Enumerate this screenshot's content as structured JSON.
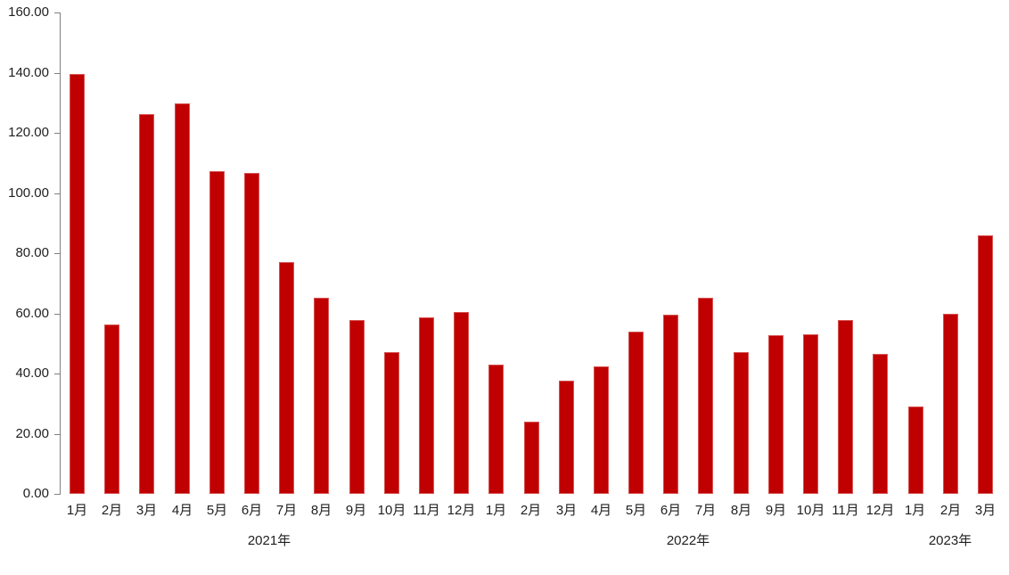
{
  "chart_data": {
    "type": "bar",
    "title": "",
    "xlabel": "",
    "ylabel": "",
    "bar_color": "#c00000",
    "axis_color": "#808080",
    "text_color": "#1f1f1f",
    "ylim": [
      0,
      160
    ],
    "y_ticks": [
      "0.00",
      "20.00",
      "40.00",
      "60.00",
      "80.00",
      "100.00",
      "120.00",
      "140.00",
      "160.00"
    ],
    "grid": false,
    "legend": "none",
    "categories": [
      "1月",
      "2月",
      "3月",
      "4月",
      "5月",
      "6月",
      "7月",
      "8月",
      "9月",
      "10月",
      "11月",
      "12月",
      "1月",
      "2月",
      "3月",
      "4月",
      "5月",
      "6月",
      "7月",
      "8月",
      "9月",
      "10月",
      "11月",
      "12月",
      "1月",
      "2月",
      "3月"
    ],
    "values": [
      139.5,
      56.3,
      126.3,
      129.7,
      107.2,
      106.8,
      76.9,
      65.1,
      57.7,
      47.1,
      58.7,
      60.5,
      43.0,
      24.0,
      37.7,
      42.5,
      53.8,
      59.7,
      65.2,
      47.0,
      52.7,
      53.0,
      57.7,
      46.4,
      29.0,
      59.8,
      85.8
    ],
    "year_groups": [
      {
        "label": "2021年",
        "start": 0,
        "count": 12
      },
      {
        "label": "2022年",
        "start": 12,
        "count": 12
      },
      {
        "label": "2023年",
        "start": 24,
        "count": 3
      }
    ]
  }
}
